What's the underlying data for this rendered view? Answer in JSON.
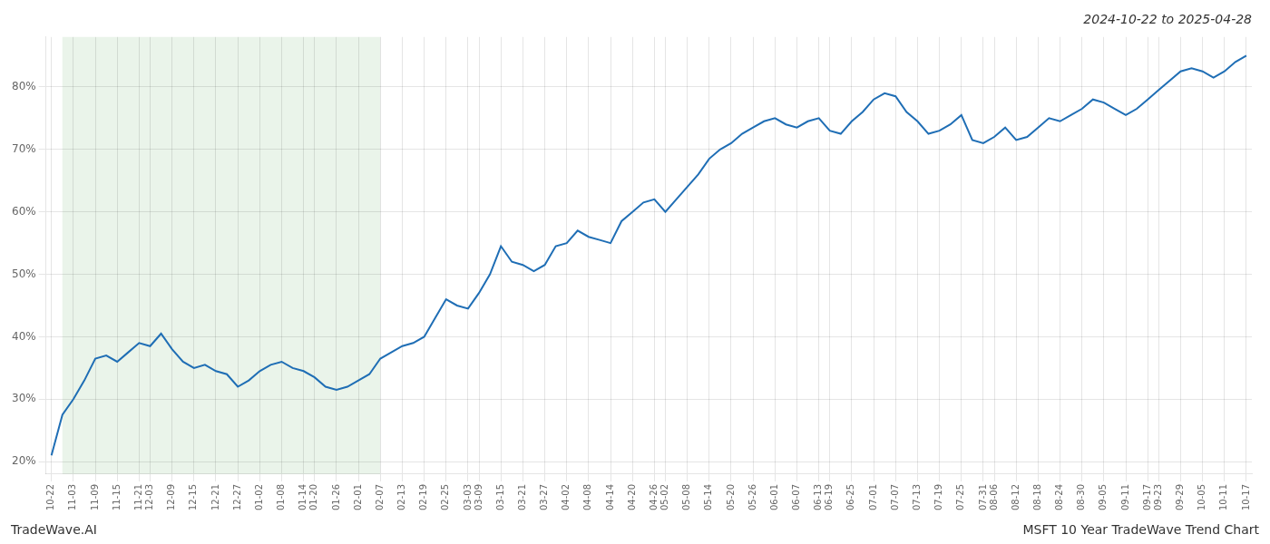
{
  "chart_data": {
    "type": "line",
    "title": "2024-10-22 to 2025-04-28",
    "annotations": [
      "TradeWave.AI",
      "MSFT 10 Year TradeWave Trend Chart"
    ],
    "categories": [
      "10-22",
      null,
      "11-03",
      null,
      "11-09",
      null,
      "11-15",
      null,
      "11-21",
      "12-03",
      null,
      "12-09",
      null,
      "12-15",
      null,
      "12-21",
      null,
      "12-27",
      null,
      "01-02",
      null,
      "01-08",
      null,
      "01-14",
      "01-20",
      null,
      "01-26",
      null,
      "02-01",
      null,
      "02-07",
      null,
      "02-13",
      null,
      "02-19",
      null,
      "02-25",
      null,
      "03-03",
      "03-09",
      null,
      "03-15",
      null,
      "03-21",
      null,
      "03-27",
      null,
      "04-02",
      null,
      "04-08",
      null,
      "04-14",
      null,
      "04-20",
      null,
      "04-26",
      "05-02",
      null,
      "05-08",
      null,
      "05-14",
      null,
      "05-20",
      null,
      "05-26",
      null,
      "06-01",
      null,
      "06-07",
      null,
      "06-13",
      "06-19",
      null,
      "06-25",
      null,
      "07-01",
      null,
      "07-07",
      null,
      "07-13",
      null,
      "07-19",
      null,
      "07-25",
      null,
      "07-31",
      "08-06",
      null,
      "08-12",
      null,
      "08-18",
      null,
      "08-24",
      null,
      "08-30",
      null,
      "09-05",
      null,
      "09-11",
      null,
      "09-17",
      "09-23",
      null,
      "09-29",
      null,
      "10-05",
      null,
      "10-11",
      null,
      "10-17"
    ],
    "values": [
      21.0,
      27.5,
      30.0,
      33.0,
      36.5,
      37.0,
      36.0,
      37.5,
      39.0,
      38.5,
      40.5,
      38.0,
      36.0,
      35.0,
      35.5,
      34.5,
      34.0,
      32.0,
      33.0,
      34.5,
      35.5,
      36.0,
      35.0,
      34.5,
      33.5,
      32.0,
      31.5,
      32.0,
      33.0,
      34.0,
      36.5,
      37.5,
      38.5,
      39.0,
      40.0,
      43.0,
      46.0,
      45.0,
      44.5,
      47.0,
      50.0,
      54.5,
      52.0,
      51.5,
      50.5,
      51.5,
      54.5,
      55.0,
      57.0,
      56.0,
      55.5,
      55.0,
      58.5,
      60.0,
      61.5,
      62.0,
      60.0,
      62.0,
      64.0,
      66.0,
      68.5,
      70.0,
      71.0,
      72.5,
      73.5,
      74.5,
      75.0,
      74.0,
      73.5,
      74.5,
      75.0,
      73.0,
      72.5,
      74.5,
      76.0,
      78.0,
      79.0,
      78.5,
      76.0,
      74.5,
      72.5,
      73.0,
      74.0,
      75.5,
      71.5,
      71.0,
      72.0,
      73.5,
      71.5,
      72.0,
      73.5,
      75.0,
      74.5,
      75.5,
      76.5,
      78.0,
      77.5,
      76.5,
      75.5,
      76.5,
      78.0,
      79.5,
      81.0,
      82.5,
      83.0,
      82.5,
      81.5,
      82.5,
      84.0,
      85.0
    ],
    "color": "#1f6eb5",
    "shaded_span": {
      "start": 1,
      "end": 30,
      "color": "#d6ead6"
    },
    "ylim": [
      18,
      88
    ],
    "yticks": [
      {
        "value": 20,
        "label": "20%"
      },
      {
        "value": 30,
        "label": "30%"
      },
      {
        "value": 40,
        "label": "40%"
      },
      {
        "value": 50,
        "label": "50%"
      },
      {
        "value": 60,
        "label": "60%"
      },
      {
        "value": 70,
        "label": "70%"
      },
      {
        "value": 80,
        "label": "80%"
      }
    ],
    "grid": true
  }
}
